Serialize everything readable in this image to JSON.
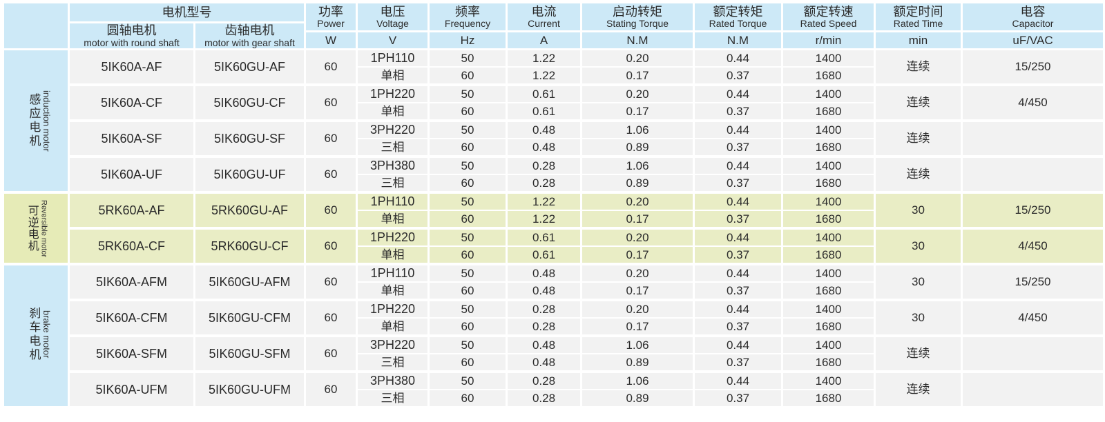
{
  "colors": {
    "header_blue": "#cde9f7",
    "group_label_green": "#e6ebb7",
    "row_green": "#e9edc5",
    "row_gray": "#f2f2f2",
    "grid_white": "#ffffff",
    "text": "#2b2b2b"
  },
  "header": {
    "model_group": {
      "zh": "电机型号"
    },
    "round": {
      "zh": "圆轴电机",
      "en": "motor with round shaft"
    },
    "gear": {
      "zh": "齿轴电机",
      "en": "motor with gear shaft"
    },
    "power": {
      "zh": "功率",
      "en": "Power",
      "unit": "W"
    },
    "voltage": {
      "zh": "电压",
      "en": "Voltage",
      "unit": "V"
    },
    "frequency": {
      "zh": "频率",
      "en": "Frequency",
      "unit": "Hz"
    },
    "current": {
      "zh": "电流",
      "en": "Current",
      "unit": "A"
    },
    "stating_torque": {
      "zh": "启动转矩",
      "en": "Stating Torque",
      "unit": "N.M"
    },
    "rated_torque": {
      "zh": "额定转矩",
      "en": "Rated Torque",
      "unit": "N.M"
    },
    "rated_speed": {
      "zh": "额定转速",
      "en": "Rated Speed",
      "unit": "r/min"
    },
    "rated_time": {
      "zh": "额定时间",
      "en": "Rated Time",
      "unit": "min"
    },
    "capacitor": {
      "zh": "电容",
      "en": "Capacitor",
      "unit": "uF/VAC"
    }
  },
  "groups": [
    {
      "id": "induction",
      "zh": "感应电机",
      "en": "induction motor",
      "rows": 4,
      "tint": "blue"
    },
    {
      "id": "reversible",
      "zh": "可逆电机",
      "en": "Reversible motor",
      "rows": 2,
      "tint": "green"
    },
    {
      "id": "brake",
      "zh": "刹车电机",
      "en": "brake motor",
      "rows": 4,
      "tint": "blue"
    }
  ],
  "rows": [
    {
      "round": "5IK60A-AF",
      "gear": "5IK60GU-AF",
      "power": "60",
      "voltage": "1PH110",
      "phase": "单相",
      "freq": [
        "50",
        "60"
      ],
      "current": [
        "1.22",
        "1.22"
      ],
      "stating": [
        "0.20",
        "0.17"
      ],
      "rated_torque": [
        "0.44",
        "0.37"
      ],
      "speed": [
        "1400",
        "1680"
      ],
      "time": "连续",
      "capacitor": "15/250"
    },
    {
      "round": "5IK60A-CF",
      "gear": "5IK60GU-CF",
      "power": "60",
      "voltage": "1PH220",
      "phase": "单相",
      "freq": [
        "50",
        "60"
      ],
      "current": [
        "0.61",
        "0.61"
      ],
      "stating": [
        "0.20",
        "0.17"
      ],
      "rated_torque": [
        "0.44",
        "0.37"
      ],
      "speed": [
        "1400",
        "1680"
      ],
      "time": "连续",
      "capacitor": "4/450"
    },
    {
      "round": "5IK60A-SF",
      "gear": "5IK60GU-SF",
      "power": "60",
      "voltage": "3PH220",
      "phase": "三相",
      "freq": [
        "50",
        "60"
      ],
      "current": [
        "0.48",
        "0.48"
      ],
      "stating": [
        "1.06",
        "0.89"
      ],
      "rated_torque": [
        "0.44",
        "0.37"
      ],
      "speed": [
        "1400",
        "1680"
      ],
      "time": "连续",
      "capacitor": ""
    },
    {
      "round": "5IK60A-UF",
      "gear": "5IK60GU-UF",
      "power": "60",
      "voltage": "3PH380",
      "phase": "三相",
      "freq": [
        "50",
        "60"
      ],
      "current": [
        "0.28",
        "0.28"
      ],
      "stating": [
        "1.06",
        "0.89"
      ],
      "rated_torque": [
        "0.44",
        "0.37"
      ],
      "speed": [
        "1400",
        "1680"
      ],
      "time": "连续",
      "capacitor": ""
    },
    {
      "round": "5RK60A-AF",
      "gear": "5RK60GU-AF",
      "power": "60",
      "voltage": "1PH110",
      "phase": "单相",
      "freq": [
        "50",
        "60"
      ],
      "current": [
        "1.22",
        "1.22"
      ],
      "stating": [
        "0.20",
        "0.17"
      ],
      "rated_torque": [
        "0.44",
        "0.37"
      ],
      "speed": [
        "1400",
        "1680"
      ],
      "time": "30",
      "capacitor": "15/250"
    },
    {
      "round": "5RK60A-CF",
      "gear": "5RK60GU-CF",
      "power": "60",
      "voltage": "1PH220",
      "phase": "单相",
      "freq": [
        "50",
        "60"
      ],
      "current": [
        "0.61",
        "0.61"
      ],
      "stating": [
        "0.20",
        "0.17"
      ],
      "rated_torque": [
        "0.44",
        "0.37"
      ],
      "speed": [
        "1400",
        "1680"
      ],
      "time": "30",
      "capacitor": "4/450"
    },
    {
      "round": "5IK60A-AFM",
      "gear": "5IK60GU-AFM",
      "power": "60",
      "voltage": "1PH110",
      "phase": "单相",
      "freq": [
        "50",
        "60"
      ],
      "current": [
        "0.48",
        "0.48"
      ],
      "stating": [
        "0.20",
        "0.17"
      ],
      "rated_torque": [
        "0.44",
        "0.37"
      ],
      "speed": [
        "1400",
        "1680"
      ],
      "time": "30",
      "capacitor": "15/250"
    },
    {
      "round": "5IK60A-CFM",
      "gear": "5IK60GU-CFM",
      "power": "60",
      "voltage": "1PH220",
      "phase": "单相",
      "freq": [
        "50",
        "60"
      ],
      "current": [
        "0.28",
        "0.28"
      ],
      "stating": [
        "0.20",
        "0.17"
      ],
      "rated_torque": [
        "0.44",
        "0.37"
      ],
      "speed": [
        "1400",
        "1680"
      ],
      "time": "30",
      "capacitor": "4/450"
    },
    {
      "round": "5IK60A-SFM",
      "gear": "5IK60GU-SFM",
      "power": "60",
      "voltage": "3PH220",
      "phase": "三相",
      "freq": [
        "50",
        "60"
      ],
      "current": [
        "0.48",
        "0.48"
      ],
      "stating": [
        "1.06",
        "0.89"
      ],
      "rated_torque": [
        "0.44",
        "0.37"
      ],
      "speed": [
        "1400",
        "1680"
      ],
      "time": "连续",
      "capacitor": ""
    },
    {
      "round": "5IK60A-UFM",
      "gear": "5IK60GU-UFM",
      "power": "60",
      "voltage": "3PH380",
      "phase": "三相",
      "freq": [
        "50",
        "60"
      ],
      "current": [
        "0.28",
        "0.28"
      ],
      "stating": [
        "1.06",
        "0.89"
      ],
      "rated_torque": [
        "0.44",
        "0.37"
      ],
      "speed": [
        "1400",
        "1680"
      ],
      "time": "连续",
      "capacitor": ""
    }
  ]
}
